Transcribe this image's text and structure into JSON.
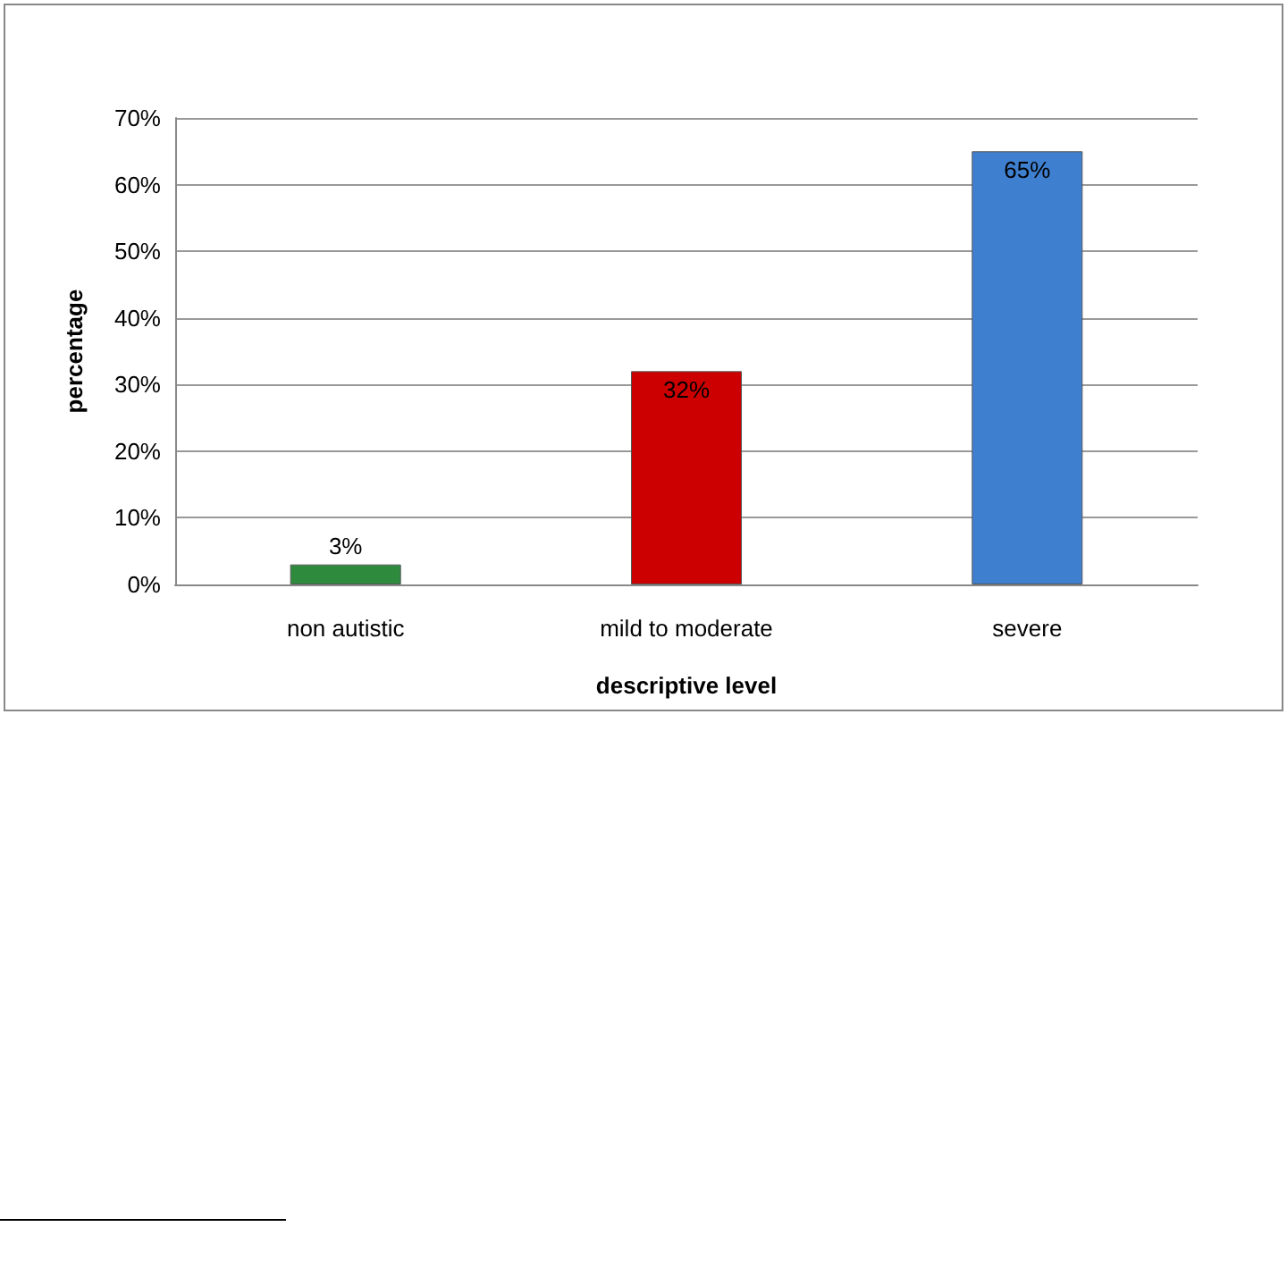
{
  "chart_data": {
    "type": "bar",
    "xlabel": "descriptive level",
    "ylabel": "percentage",
    "categories": [
      "non autistic",
      "mild to moderate",
      "severe"
    ],
    "values": [
      3,
      32,
      65
    ],
    "colors": [
      "#2e8b3e",
      "#cc0000",
      "#3f7fcf"
    ],
    "value_labels": [
      "3%",
      "32%",
      "65%"
    ],
    "ylim": [
      0,
      70
    ],
    "yticks": [
      {
        "value": 0,
        "label": "0%"
      },
      {
        "value": 10,
        "label": "10%"
      },
      {
        "value": 20,
        "label": "20%"
      },
      {
        "value": 30,
        "label": "30%"
      },
      {
        "value": 40,
        "label": "40%"
      },
      {
        "value": 50,
        "label": "50%"
      },
      {
        "value": 60,
        "label": "60%"
      },
      {
        "value": 70,
        "label": "70%"
      }
    ],
    "grid": "y"
  }
}
